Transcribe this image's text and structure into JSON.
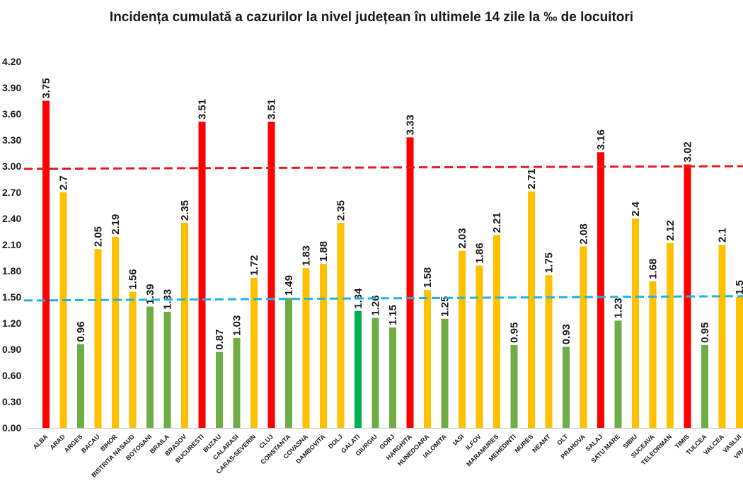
{
  "chart_data": {
    "type": "bar",
    "title": "Incidența cumulată a cazurilor la nivel județean în ultimele 14 zile la ‰ de locuitori",
    "xlabel": "",
    "ylabel": "",
    "ylim": [
      0,
      4.2
    ],
    "yticks": [
      "0.00",
      "0.30",
      "0.60",
      "0.90",
      "1.20",
      "1.50",
      "1.80",
      "2.10",
      "2.40",
      "2.70",
      "3.00",
      "3.30",
      "3.60",
      "3.90",
      "4.20"
    ],
    "grid": false,
    "categories": [
      "ALBA",
      "ARAD",
      "ARGES",
      "BACAU",
      "BIHOR",
      "BISTRITA NASAUD",
      "BOTOSANI",
      "BRAILA",
      "BRASOV",
      "BUCURESTI",
      "BUZAU",
      "CALARASI",
      "CARAS-SEVERIN",
      "CLUJ",
      "CONSTANTA",
      "COVASNA",
      "DAMBOVITA",
      "DOLJ",
      "GALATI",
      "GIURGIU",
      "GORJ",
      "HARGHITA",
      "HUNEDOARA",
      "IALOMITA",
      "IASI",
      "ILFOV",
      "MARAMURES",
      "MEHEDINTI",
      "MURES",
      "NEAMT",
      "OLT",
      "PRAHOVA",
      "SALAJ",
      "SATU MARE",
      "SIBIU",
      "SUCEAVA",
      "TELEORMAN",
      "TIMIS",
      "TULCEA",
      "VALCEA",
      "VASLUI",
      "VRANCEA"
    ],
    "values": [
      3.75,
      2.7,
      0.96,
      2.05,
      2.19,
      1.56,
      1.39,
      1.33,
      2.35,
      3.51,
      0.87,
      1.03,
      1.72,
      3.51,
      1.49,
      1.83,
      1.88,
      2.35,
      1.34,
      1.26,
      1.15,
      3.33,
      1.58,
      1.25,
      2.03,
      1.86,
      2.21,
      0.95,
      2.71,
      1.75,
      0.93,
      2.08,
      3.16,
      1.23,
      2.4,
      1.68,
      2.12,
      3.02,
      0.95,
      2.1,
      1.5,
      null
    ],
    "labels": [
      "3.75",
      "2.7",
      "0.96",
      "2.05",
      "2.19",
      "1.56",
      "1.39",
      "1.33",
      "2.35",
      "3.51",
      "0.87",
      "1.03",
      "1.72",
      "3.51",
      "1.49",
      "1.83",
      "1.88",
      "2.35",
      "1.34",
      "1.26",
      "1.15",
      "3.33",
      "1.58",
      "1.25",
      "2.03",
      "1.86",
      "2.21",
      "0.95",
      "2.71",
      "1.75",
      "0.93",
      "2.08",
      "3.16",
      "1.23",
      "2.4",
      "1.68",
      "2.12",
      "3.02",
      "0.95",
      "2.1",
      "1.5",
      ""
    ],
    "colors": {
      "red": "#ff0000",
      "yellow": "#ffc000",
      "green": "#70ad47",
      "bright_green": "#00b050",
      "red_line": "#e41e1e",
      "blue_line": "#1fb4e6",
      "axis": "#bfbfbf"
    },
    "bar_colors": [
      "red",
      "yellow",
      "green",
      "yellow",
      "yellow",
      "yellow",
      "green",
      "green",
      "yellow",
      "red",
      "green",
      "green",
      "yellow",
      "red",
      "green",
      "yellow",
      "yellow",
      "yellow",
      "bright_green",
      "green",
      "green",
      "red",
      "yellow",
      "green",
      "yellow",
      "yellow",
      "yellow",
      "green",
      "yellow",
      "yellow",
      "green",
      "yellow",
      "red",
      "green",
      "yellow",
      "yellow",
      "yellow",
      "red",
      "green",
      "yellow",
      "yellow",
      "yellow"
    ],
    "reference_lines": [
      {
        "style": "dashed",
        "color": "red_line",
        "y_start": 2.97,
        "y_end": 3.0
      },
      {
        "style": "dashed",
        "color": "blue_line",
        "y_start": 1.46,
        "y_end": 1.51
      }
    ]
  }
}
